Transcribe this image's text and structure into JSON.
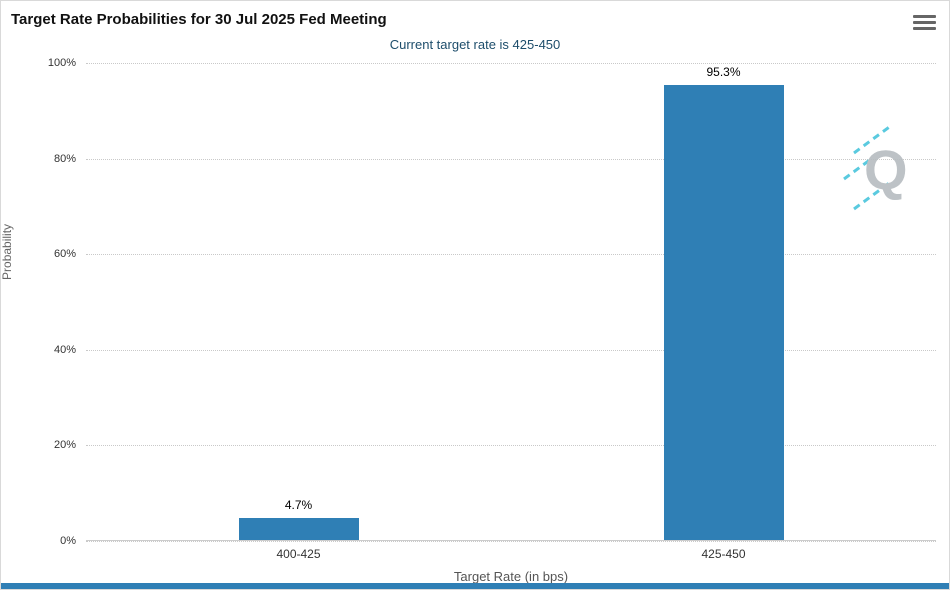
{
  "header": {
    "title": "Target Rate Probabilities for 30 Jul 2025 Fed Meeting",
    "subtitle": "Current target rate is 425-450"
  },
  "chart_data": {
    "type": "bar",
    "title": "Target Rate Probabilities for 30 Jul 2025 Fed Meeting",
    "subtitle": "Current target rate is 425-450",
    "categories": [
      "400-425",
      "425-450"
    ],
    "values": [
      4.7,
      95.3
    ],
    "data_labels": [
      "4.7%",
      "95.3%"
    ],
    "xlabel": "Target Rate (in bps)",
    "ylabel": "Probability",
    "ylim": [
      0,
      100
    ],
    "yticks": [
      0,
      20,
      40,
      60,
      80,
      100
    ],
    "ytick_labels": [
      "0%",
      "20%",
      "40%",
      "60%",
      "80%",
      "100%"
    ],
    "grid": true,
    "legend": "none",
    "bar_color": "#2f7fb5"
  },
  "colors": {
    "bar": "#2f7fb5",
    "subtitle_text": "#1d4d6b",
    "footer_accent": "#2f7fb5",
    "watermark_letter": "#b6bcc0",
    "watermark_dashes": "#49c5dc"
  },
  "icons": {
    "menu": "hamburger-icon"
  },
  "watermark": {
    "letter": "Q"
  }
}
